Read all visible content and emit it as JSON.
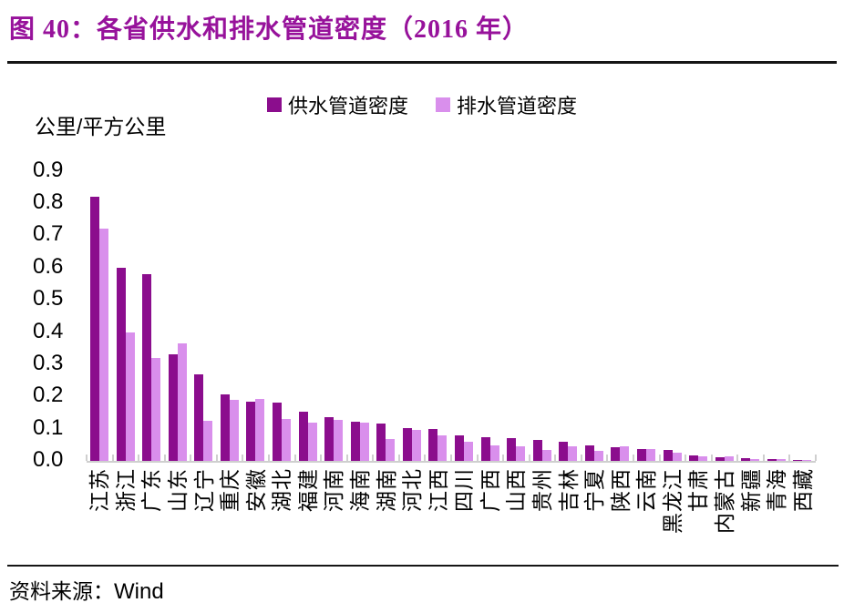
{
  "header": {
    "title": "图 40：各省供水和排水管道密度（2016 年）"
  },
  "footer": {
    "source_label": "资料来源：",
    "source_value": "Wind"
  },
  "colors": {
    "title": "#97129B",
    "rule": "#151515",
    "axis": "#CFCFCF",
    "supply_bar": "#8B0D8D",
    "drainage_bar": "#D98FEC"
  },
  "chart_data": {
    "type": "bar",
    "title": "各省供水和排水管道密度（2016 年）",
    "unit_label": "公里/平方公里",
    "xlabel": "",
    "ylabel": "公里/平方公里",
    "ylim": [
      0,
      0.9
    ],
    "yticks": [
      "0.9",
      "0.8",
      "0.7",
      "0.6",
      "0.5",
      "0.4",
      "0.3",
      "0.2",
      "0.1",
      "0.0"
    ],
    "grid": false,
    "legend_position": "top-center",
    "categories": [
      "江苏",
      "浙江",
      "广东",
      "山东",
      "辽宁",
      "重庆",
      "安徽",
      "湖北",
      "福建",
      "河南",
      "海南",
      "湖南",
      "河北",
      "江西",
      "四川",
      "广西",
      "山西",
      "贵州",
      "吉林",
      "宁夏",
      "陕西",
      "云南",
      "黑龙江",
      "甘肃",
      "内蒙古",
      "新疆",
      "青海",
      "西藏"
    ],
    "series": [
      {
        "name": "供水管道密度",
        "color": "#8B0D8D",
        "values": [
          0.82,
          0.6,
          0.58,
          0.33,
          0.27,
          0.205,
          0.185,
          0.18,
          0.153,
          0.137,
          0.122,
          0.115,
          0.103,
          0.1,
          0.08,
          0.073,
          0.072,
          0.066,
          0.059,
          0.047,
          0.042,
          0.038,
          0.034,
          0.016,
          0.011,
          0.009,
          0.006,
          0.004
        ]
      },
      {
        "name": "排水管道密度",
        "color": "#D98FEC",
        "values": [
          0.72,
          0.4,
          0.32,
          0.365,
          0.125,
          0.19,
          0.192,
          0.13,
          0.118,
          0.128,
          0.12,
          0.068,
          0.097,
          0.08,
          0.058,
          0.047,
          0.045,
          0.033,
          0.044,
          0.03,
          0.045,
          0.038,
          0.025,
          0.015,
          0.013,
          0.007,
          0.006,
          0.003
        ]
      }
    ]
  }
}
